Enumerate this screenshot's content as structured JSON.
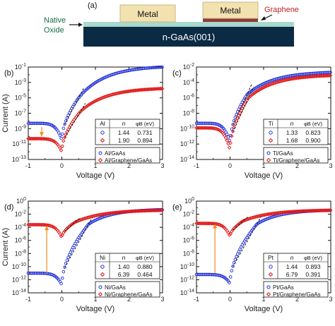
{
  "colors": {
    "blue": "#1f2fd8",
    "red": "#e01818",
    "arrow": "#f08a1c",
    "metal": "#f2e2b0",
    "graphene": "#8c3a3a",
    "substrate": "#0b2a44",
    "oxide": "#a9d8cc",
    "native_oxide_text": "#1a6b4a",
    "graphene_text": "#c02020"
  },
  "schematic": {
    "panel_label": "(a)",
    "metal_label_1": "Metal",
    "metal_label_2": "Metal",
    "graphene_label": "Graphene",
    "native_label_line1": "Native",
    "native_label_line2": "Oxide",
    "substrate_label": "n-GaAs(001)"
  },
  "chart_data": [
    {
      "type": "scatter",
      "panel_label": "(b)",
      "metal": "Al",
      "xlabel": "Voltage (V)",
      "ylabel": "Current (A)",
      "xlim": [
        -1,
        3
      ],
      "ylim_exp": [
        -13,
        -1
      ],
      "xticks": [
        "-1",
        "0",
        "1",
        "2",
        "3"
      ],
      "yticks": [
        -1,
        -3,
        -5,
        -7,
        -9,
        -11,
        -13
      ],
      "table": {
        "headers": [
          "Al",
          "n",
          "φB (eV)"
        ],
        "rows": [
          [
            "1.44",
            "0.731"
          ],
          [
            "1.90",
            "0.894"
          ]
        ]
      },
      "legend": [
        "Al/GaAs",
        "Al/Graphene/GaAs"
      ],
      "series": [
        {
          "name": "Al/GaAs",
          "color": "blue",
          "min_exp": -10.5,
          "rev_exp_left": -8.3,
          "fwd_knee_v": 0.5,
          "fwd_knee_exp": -5,
          "sat_exp": -1.0
        },
        {
          "name": "Al/Graphene/GaAs",
          "color": "red",
          "min_exp": -12.0,
          "rev_exp_left": -10.3,
          "fwd_knee_v": 0.55,
          "fwd_knee_exp": -6.8,
          "sat_exp": -3.8
        }
      ],
      "arrow": {
        "x": -0.6,
        "from_exp": -8.8,
        "to_exp": -10.0,
        "direction": "down"
      }
    },
    {
      "type": "scatter",
      "panel_label": "(c)",
      "metal": "Ti",
      "xlabel": "Voltage (V)",
      "ylabel": "",
      "xlim": [
        -1,
        3
      ],
      "ylim_exp": [
        -14,
        -2
      ],
      "xticks": [
        "-1",
        "0",
        "1",
        "2",
        "3"
      ],
      "yticks": [
        -2,
        -4,
        -6,
        -8,
        -10,
        -12,
        -14
      ],
      "table": {
        "headers": [
          "Ti",
          "n",
          "φB (eV)"
        ],
        "rows": [
          [
            "1.33",
            "0.823"
          ],
          [
            "1.68",
            "0.900"
          ]
        ]
      },
      "legend": [
        "Ti/GaAs",
        "Ti/Graphene/GaAs"
      ],
      "series": [
        {
          "name": "Ti/GaAs",
          "color": "blue",
          "min_exp": -11.8,
          "rev_exp_left": -9.3,
          "fwd_knee_v": 0.5,
          "fwd_knee_exp": -5.6,
          "sat_exp": -2.7
        },
        {
          "name": "Ti/Graphene/GaAs",
          "color": "red",
          "min_exp": -12.8,
          "rev_exp_left": -9.9,
          "fwd_knee_v": 0.55,
          "fwd_knee_exp": -6.0,
          "sat_exp": -3.1
        }
      ],
      "arrow": null
    },
    {
      "type": "scatter",
      "panel_label": "(d)",
      "metal": "Ni",
      "xlabel": "Voltage (V)",
      "ylabel": "Current (A)",
      "xlim": [
        -1,
        3
      ],
      "ylim_exp": [
        -14,
        0
      ],
      "xticks": [
        "-1",
        "0",
        "1",
        "2",
        "3"
      ],
      "yticks": [
        0,
        -2,
        -4,
        -6,
        -8,
        -10,
        -12,
        -14
      ],
      "table": {
        "headers": [
          "Ni",
          "n",
          "φB (eV)"
        ],
        "rows": [
          [
            "1.40",
            "0.880"
          ],
          [
            "6.39",
            "0.464"
          ]
        ]
      },
      "legend": [
        "Ni/GaAs",
        "Ni/Graphene/GaAs"
      ],
      "series": [
        {
          "name": "Ni/GaAs",
          "color": "blue",
          "min_exp": -12.8,
          "rev_exp_left": -11.0,
          "fwd_knee_v": 0.8,
          "fwd_knee_exp": -3.5,
          "sat_exp": -1.3
        },
        {
          "name": "Ni/Graphene/GaAs",
          "color": "red",
          "min_exp": -5.6,
          "rev_exp_left": -3.6,
          "fwd_knee_v": 0.4,
          "fwd_knee_exp": -3.2,
          "sat_exp": -1.4
        }
      ],
      "arrow": {
        "x": -0.45,
        "from_exp": -11.0,
        "to_exp": -3.8,
        "direction": "up"
      }
    },
    {
      "type": "scatter",
      "panel_label": "(e)",
      "metal": "Pt",
      "xlabel": "Voltage (V)",
      "ylabel": "",
      "xlim": [
        -1,
        3
      ],
      "ylim_exp": [
        -14,
        0
      ],
      "xticks": [
        "-1",
        "0",
        "1",
        "2",
        "3"
      ],
      "yticks": [
        0,
        -2,
        -4,
        -6,
        -8,
        -10,
        -12,
        -14
      ],
      "table": {
        "headers": [
          "Pt",
          "n",
          "φB (eV)"
        ],
        "rows": [
          [
            "1.44",
            "0.893"
          ],
          [
            "6.79",
            "0.391"
          ]
        ]
      },
      "legend": [
        "Pt/GaAs",
        "Pt/Graphene/GaAs"
      ],
      "series": [
        {
          "name": "Pt/GaAs",
          "color": "blue",
          "min_exp": -12.6,
          "rev_exp_left": -11.2,
          "fwd_knee_v": 0.8,
          "fwd_knee_exp": -3.5,
          "sat_exp": -1.4
        },
        {
          "name": "Pt/Graphene/GaAs",
          "color": "red",
          "min_exp": -5.4,
          "rev_exp_left": -3.4,
          "fwd_knee_v": 0.4,
          "fwd_knee_exp": -3.0,
          "sat_exp": -1.4
        }
      ],
      "arrow": {
        "x": -0.45,
        "from_exp": -11.0,
        "to_exp": -3.5,
        "direction": "up"
      }
    }
  ]
}
